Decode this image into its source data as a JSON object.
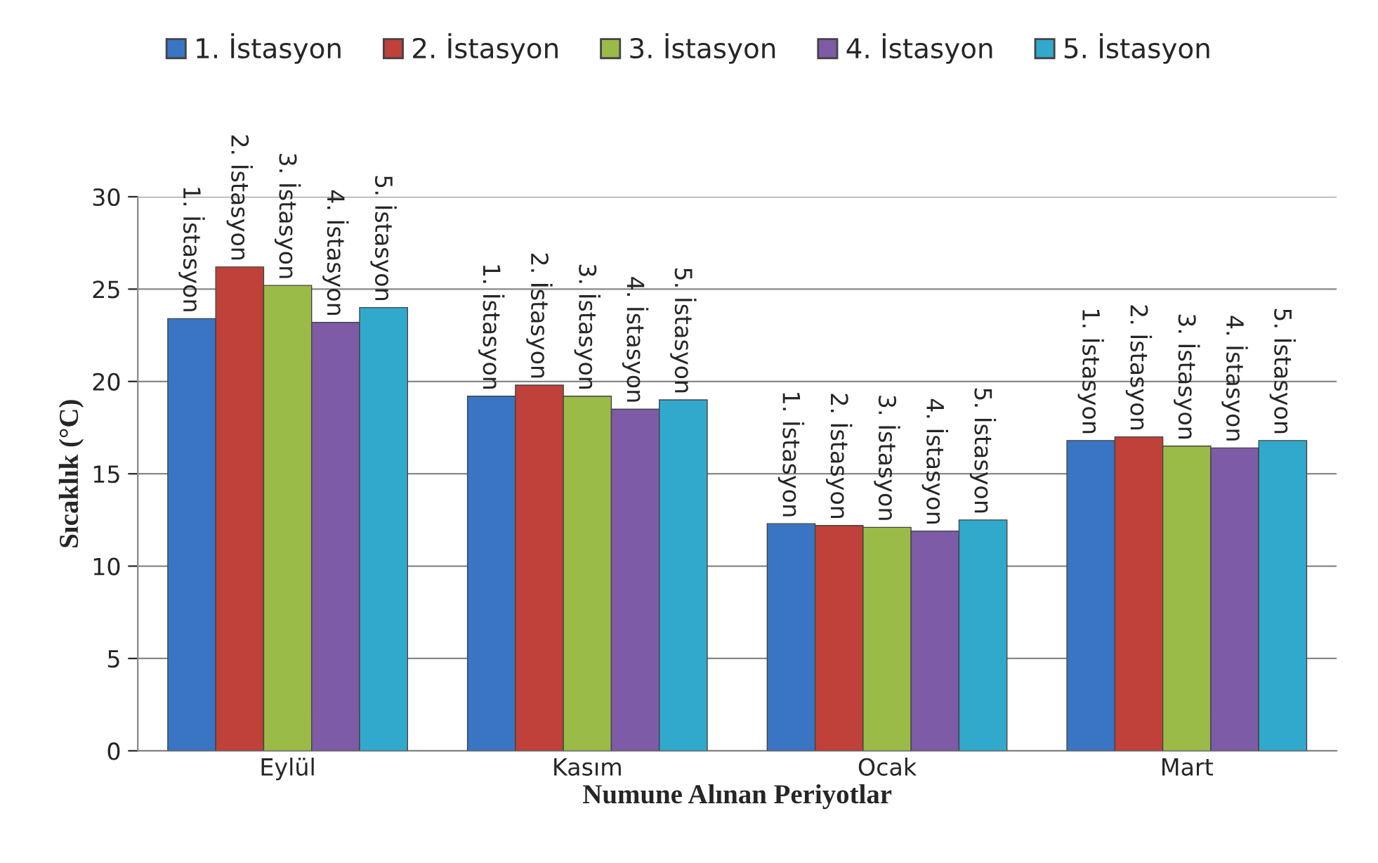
{
  "chart_data": {
    "type": "bar",
    "xlabel": "Numune Alınan Periyotlar",
    "ylabel": "Sıcaklık (°C)",
    "categories": [
      "Eylül",
      "Kasım",
      "Ocak",
      "Mart"
    ],
    "series": [
      {
        "name": "1. İstasyon",
        "color": "#3a75c4",
        "values": [
          23.4,
          19.2,
          12.3,
          16.8
        ]
      },
      {
        "name": "2. İstasyon",
        "color": "#c0403a",
        "values": [
          26.2,
          19.8,
          12.2,
          17.0
        ]
      },
      {
        "name": "3. İstasyon",
        "color": "#9bbb49",
        "values": [
          25.2,
          19.2,
          12.1,
          16.5
        ]
      },
      {
        "name": "4. İstasyon",
        "color": "#7d5ba6",
        "values": [
          23.2,
          18.5,
          11.9,
          16.4
        ]
      },
      {
        "name": "5. İstasyon",
        "color": "#31a9cc",
        "values": [
          24.0,
          19.0,
          12.5,
          16.8
        ]
      }
    ],
    "annotations": [
      "1. İstasyon",
      "1. İstasyon",
      "1. İstasyon",
      "1. İstasyon",
      "2. İstasyon",
      "2. İstasyon",
      "2. İstasyon",
      "2. İstasyon",
      "3. İstasyon",
      "3. İstasyon",
      "3. İstasyon",
      "3. İstasyon",
      "4. İstasyon",
      "4. İstasyon",
      "4. İstasyon",
      "4. İstasyon",
      "5. İstasyon",
      "5. İstasyon",
      "5. İstasyon",
      "5. İstasyon"
    ],
    "ylim": [
      0,
      30
    ],
    "yticks": [
      0,
      5,
      10,
      15,
      20,
      25,
      30
    ],
    "grid": "y",
    "legend": "top"
  }
}
